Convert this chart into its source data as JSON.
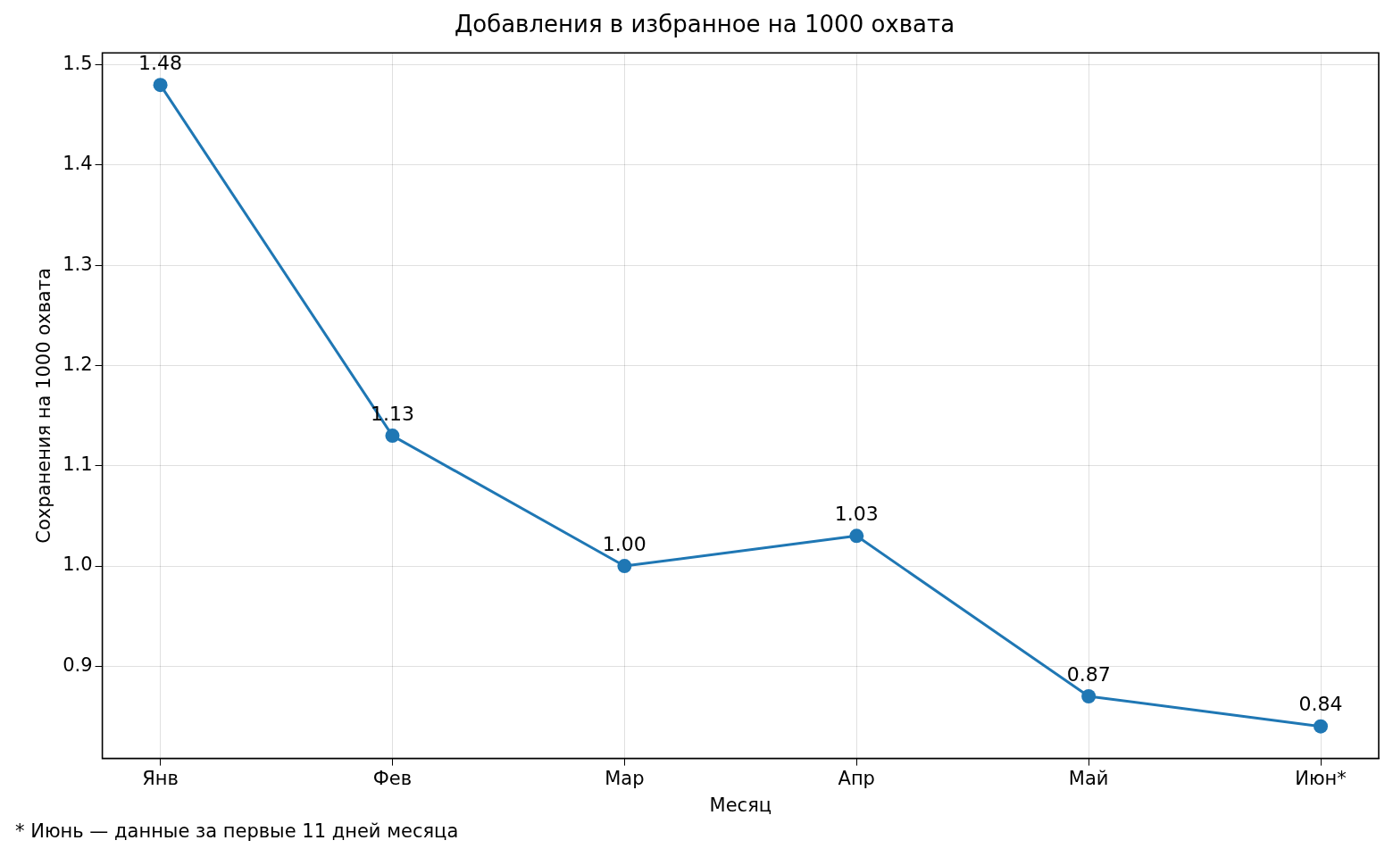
{
  "chart_data": {
    "type": "line",
    "title": "Добавления в избранное на 1000 охвата",
    "xlabel": "Месяц",
    "ylabel": "Сохранения на 1000 охвата",
    "categories": [
      "Янв",
      "Фев",
      "Мар",
      "Апр",
      "Май",
      "Июн*"
    ],
    "series": [
      {
        "color": "#1f77b4",
        "values": [
          1.48,
          1.13,
          1.0,
          1.03,
          0.87,
          0.84
        ],
        "value_labels": [
          "1.48",
          "1.13",
          "1.00",
          "1.03",
          "0.87",
          "0.84"
        ]
      }
    ],
    "ylim": [
      0.808,
      1.512
    ],
    "yticks": [
      {
        "value": 0.9,
        "label": "0.9"
      },
      {
        "value": 1.0,
        "label": "1.0"
      },
      {
        "value": 1.1,
        "label": "1.1"
      },
      {
        "value": 1.2,
        "label": "1.2"
      },
      {
        "value": 1.3,
        "label": "1.3"
      },
      {
        "value": 1.4,
        "label": "1.4"
      },
      {
        "value": 1.5,
        "label": "1.5"
      }
    ],
    "grid": true,
    "marker": "circle",
    "line_style": "solid",
    "legend": false,
    "annotations": [
      "* Июнь — данные за первые 11 дней месяца"
    ]
  }
}
